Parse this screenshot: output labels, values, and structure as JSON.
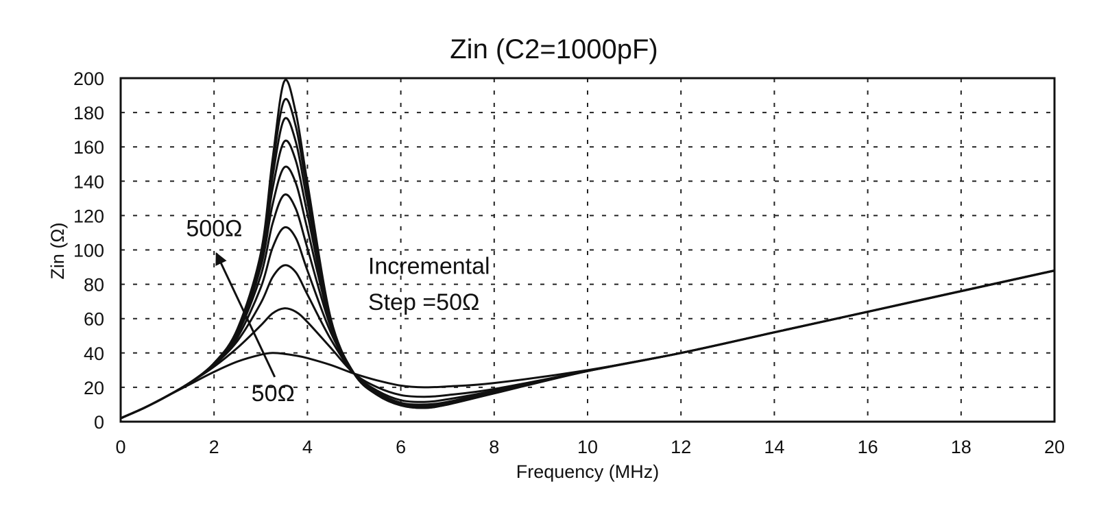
{
  "chart_data": {
    "type": "line",
    "title": "Zin (C2=1000pF)",
    "xlabel": "Frequency (MHz)",
    "ylabel": "Zin (Ω)",
    "xlim": [
      0,
      20
    ],
    "ylim": [
      0,
      200
    ],
    "x_ticks": [
      "0",
      "2",
      "4",
      "6",
      "8",
      "10",
      "12",
      "14",
      "16",
      "18",
      "20"
    ],
    "y_ticks": [
      "0",
      "20",
      "40",
      "60",
      "80",
      "100",
      "120",
      "140",
      "160",
      "180",
      "200"
    ],
    "grid": true,
    "legend": "none",
    "x": [
      0,
      0.5,
      1,
      1.5,
      2,
      2.5,
      3,
      3.25,
      3.5,
      3.75,
      4,
      4.5,
      5,
      5.5,
      6,
      6.5,
      7,
      8,
      10,
      12,
      14,
      16,
      18,
      20
    ],
    "series": [
      {
        "values": [
          2,
          8,
          15,
          22,
          29,
          35,
          39,
          40,
          39.5,
          38.5,
          37,
          33,
          28,
          24,
          21,
          20,
          20.5,
          22.5,
          30,
          40,
          52,
          64,
          76,
          88
        ]
      },
      {
        "values": [
          2,
          8,
          15,
          23,
          32,
          43,
          56,
          63,
          66,
          64,
          58,
          43,
          28,
          20,
          15.5,
          14.5,
          15.5,
          19,
          29.5,
          40,
          52,
          64,
          76,
          88
        ]
      },
      {
        "values": [
          2,
          8,
          15,
          23,
          33,
          47,
          69,
          84,
          91,
          87,
          74,
          48,
          28,
          18,
          12.5,
          11.5,
          13,
          18,
          29.5,
          40,
          52,
          64,
          76,
          88
        ]
      },
      {
        "values": [
          2,
          8,
          15,
          23,
          33,
          49,
          78,
          101,
          113,
          107,
          88,
          52,
          28,
          17,
          11,
          10,
          11.5,
          17.5,
          29.5,
          40,
          52,
          64,
          76,
          88
        ]
      },
      {
        "values": [
          2,
          8,
          15,
          23,
          34,
          51,
          85,
          115,
          132,
          124,
          101,
          55,
          28,
          16.5,
          10.5,
          9.5,
          11,
          17,
          29.5,
          40,
          52,
          64,
          76,
          88
        ]
      },
      {
        "values": [
          2,
          8,
          15,
          23,
          34,
          52,
          90,
          126,
          148,
          139,
          112,
          57,
          28,
          16,
          10,
          9,
          10.5,
          17,
          29.5,
          40,
          52,
          64,
          76,
          88
        ]
      },
      {
        "values": [
          2,
          8,
          15,
          23,
          34,
          53,
          93,
          135,
          163,
          152,
          121,
          58,
          28,
          16,
          10,
          8.5,
          10.5,
          17,
          29.5,
          40,
          52,
          64,
          76,
          88
        ]
      },
      {
        "values": [
          2,
          8,
          15,
          23,
          34,
          53,
          95,
          142,
          176,
          163,
          128,
          59,
          28,
          15.5,
          9.5,
          8.5,
          10,
          17,
          29.5,
          40,
          52,
          64,
          76,
          88
        ]
      },
      {
        "values": [
          2,
          8,
          15,
          23,
          34,
          53.5,
          97,
          148,
          187,
          172,
          134,
          60,
          28,
          15.5,
          9.5,
          8,
          10,
          16.5,
          29.5,
          40,
          52,
          64,
          76,
          88
        ]
      },
      {
        "values": [
          2,
          8,
          15,
          23,
          34,
          54,
          98,
          152,
          198,
          180,
          139,
          60,
          28,
          15.5,
          9.5,
          8,
          10,
          16.5,
          29.5,
          40,
          52,
          64,
          76,
          88
        ]
      }
    ],
    "annotations": [
      {
        "text": "500Ω",
        "x": 1.4,
        "y": 108
      },
      {
        "text": "50Ω",
        "x": 2.8,
        "y": 12
      },
      {
        "text": "Incremental",
        "x": 5.3,
        "y": 86
      },
      {
        "text": "Step =50Ω",
        "x": 5.3,
        "y": 65
      }
    ],
    "arrow": {
      "from": [
        3.3,
        26
      ],
      "to": [
        2.05,
        98
      ]
    }
  }
}
